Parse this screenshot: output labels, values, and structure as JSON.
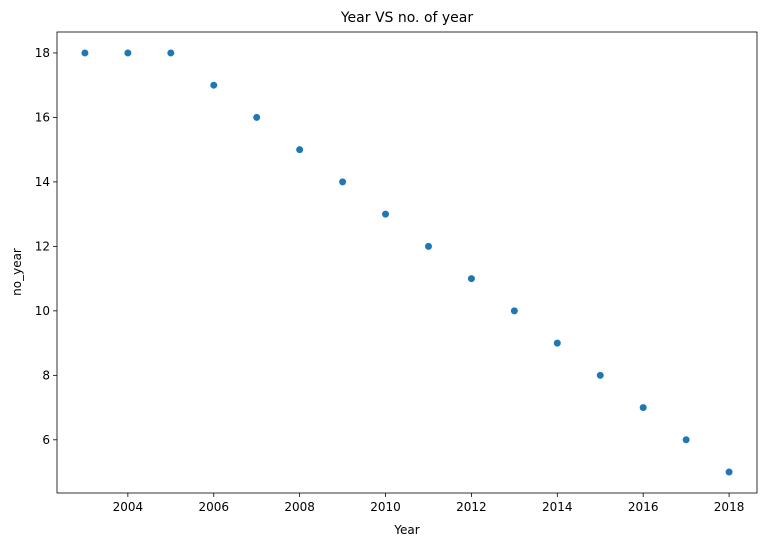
{
  "chart_data": {
    "type": "scatter",
    "title": "Year VS no. of year",
    "xlabel": "Year",
    "ylabel": "no_year",
    "xlim": [
      2002.35,
      2018.65
    ],
    "ylim": [
      4.35,
      18.65
    ],
    "xticks": [
      2004,
      2006,
      2008,
      2010,
      2012,
      2014,
      2016,
      2018
    ],
    "yticks": [
      6,
      8,
      10,
      12,
      14,
      16,
      18
    ],
    "grid": false,
    "marker_color": "#1f77b4",
    "points": [
      {
        "x": 2003,
        "y": 18
      },
      {
        "x": 2004,
        "y": 18
      },
      {
        "x": 2005,
        "y": 18
      },
      {
        "x": 2006,
        "y": 17
      },
      {
        "x": 2007,
        "y": 16
      },
      {
        "x": 2008,
        "y": 15
      },
      {
        "x": 2009,
        "y": 14
      },
      {
        "x": 2010,
        "y": 13
      },
      {
        "x": 2011,
        "y": 12
      },
      {
        "x": 2012,
        "y": 11
      },
      {
        "x": 2013,
        "y": 10
      },
      {
        "x": 2014,
        "y": 9
      },
      {
        "x": 2015,
        "y": 8
      },
      {
        "x": 2016,
        "y": 7
      },
      {
        "x": 2017,
        "y": 6
      },
      {
        "x": 2018,
        "y": 5
      }
    ]
  }
}
